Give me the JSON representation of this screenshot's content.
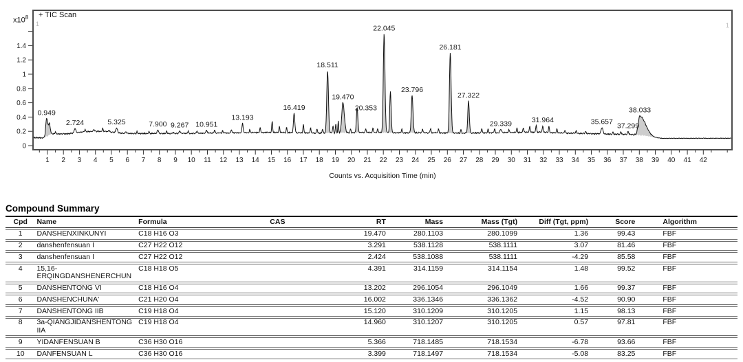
{
  "chromatogram": {
    "signal_label": "+ TIC Scan",
    "y_exponent_base": "x10",
    "y_exponent_power": "8",
    "corner_marker": "1",
    "x_axis_title": "Counts vs. Acquisition Time (min)"
  },
  "chart_data": {
    "type": "line",
    "title": "+ TIC Scan",
    "xlabel": "Counts vs. Acquisition Time (min)",
    "ylabel": "x10^8",
    "xlim": [
      0.1,
      43.75
    ],
    "ylim": [
      0,
      1.9
    ],
    "grid": false,
    "x_ticks": [
      1,
      2,
      3,
      4,
      5,
      6,
      7,
      8,
      9,
      10,
      11,
      12,
      13,
      14,
      15,
      16,
      17,
      18,
      19,
      20,
      21,
      22,
      23,
      24,
      25,
      26,
      27,
      28,
      29,
      30,
      31,
      32,
      33,
      34,
      35,
      36,
      37,
      38,
      39,
      40,
      41,
      42
    ],
    "y_tick_values": [
      0,
      0.2,
      0.4,
      0.6,
      0.8,
      1.0,
      1.2,
      1.4,
      1.6
    ],
    "y_tick_labels": [
      "0",
      "0.2",
      "0.4",
      "0.6",
      "0.8",
      "1",
      "1.2",
      "1.4",
      ""
    ],
    "baseline": [
      [
        0.1,
        0.11
      ],
      [
        0.8,
        0.11
      ],
      [
        1.25,
        0.165
      ],
      [
        2.2,
        0.165
      ],
      [
        3.0,
        0.185
      ],
      [
        3.8,
        0.2
      ],
      [
        4.6,
        0.2
      ],
      [
        5.1,
        0.185
      ],
      [
        5.8,
        0.17
      ],
      [
        7.0,
        0.17
      ],
      [
        9.0,
        0.17
      ],
      [
        11.0,
        0.175
      ],
      [
        13.0,
        0.18
      ],
      [
        15.0,
        0.185
      ],
      [
        16.5,
        0.18
      ],
      [
        18.0,
        0.175
      ],
      [
        19.7,
        0.18
      ],
      [
        21.0,
        0.185
      ],
      [
        23.0,
        0.18
      ],
      [
        25.0,
        0.18
      ],
      [
        27.0,
        0.175
      ],
      [
        29.0,
        0.18
      ],
      [
        30.5,
        0.185
      ],
      [
        31.8,
        0.19
      ],
      [
        32.6,
        0.18
      ],
      [
        33.5,
        0.175
      ],
      [
        34.5,
        0.17
      ],
      [
        35.5,
        0.165
      ],
      [
        36.5,
        0.16
      ],
      [
        37.5,
        0.155
      ],
      [
        38.4,
        0.14
      ],
      [
        38.9,
        0.115
      ],
      [
        39.4,
        0.102
      ],
      [
        43.75,
        0.103
      ]
    ],
    "peaks": [
      {
        "rt": 0.949,
        "h": 0.25,
        "sl": 0.055,
        "sr": 0.09,
        "fill": true,
        "label": "0.949"
      },
      {
        "rt": 1.13,
        "h": 0.13,
        "sl": 0.04,
        "sr": 0.05,
        "fill": true
      },
      {
        "rt": 2.724,
        "h": 0.06,
        "sl": 0.05,
        "sr": 0.05,
        "label": "2.724"
      },
      {
        "rt": 5.325,
        "h": 0.07,
        "sl": 0.05,
        "sr": 0.05,
        "label": "5.325"
      },
      {
        "rt": 7.9,
        "h": 0.05,
        "sl": 0.04,
        "sr": 0.04,
        "label": "7.900"
      },
      {
        "rt": 9.267,
        "h": 0.035,
        "sl": 0.04,
        "sr": 0.04,
        "label": "9.267"
      },
      {
        "rt": 10.951,
        "h": 0.04,
        "sl": 0.04,
        "sr": 0.04,
        "label": "10.951"
      },
      {
        "rt": 13.193,
        "h": 0.13,
        "sl": 0.035,
        "sr": 0.04,
        "label": "13.193"
      },
      {
        "rt": 16.419,
        "h": 0.27,
        "sl": 0.04,
        "sr": 0.045,
        "label": "16.419"
      },
      {
        "rt": 18.511,
        "h": 0.87,
        "sl": 0.05,
        "sr": 0.055,
        "fill": true,
        "label": "18.511"
      },
      {
        "rt": 19.18,
        "h": 0.16,
        "sl": 0.025,
        "sr": 0.025,
        "fill": true
      },
      {
        "rt": 19.47,
        "h": 0.42,
        "sl": 0.07,
        "sr": 0.09,
        "fill": true,
        "label": "19.470"
      },
      {
        "rt": 20.353,
        "h": 0.35,
        "sl": 0.04,
        "sr": 0.05,
        "fill": true,
        "label": "20.353",
        "dx": 13,
        "dy": 9
      },
      {
        "rt": 22.045,
        "h": 1.38,
        "sl": 0.05,
        "sr": 0.055,
        "fill": true,
        "label": "22.045"
      },
      {
        "rt": 22.44,
        "h": 0.58,
        "sl": 0.04,
        "sr": 0.045,
        "fill": true
      },
      {
        "rt": 23.796,
        "h": 0.52,
        "sl": 0.05,
        "sr": 0.055,
        "fill": true,
        "label": "23.796"
      },
      {
        "rt": 26.181,
        "h": 1.12,
        "sl": 0.05,
        "sr": 0.055,
        "fill": true,
        "label": "26.181"
      },
      {
        "rt": 27.322,
        "h": 0.45,
        "sl": 0.045,
        "sr": 0.05,
        "fill": true,
        "label": "27.322"
      },
      {
        "rt": 29.339,
        "h": 0.045,
        "sl": 0.05,
        "sr": 0.05,
        "label": "29.339"
      },
      {
        "rt": 31.964,
        "h": 0.09,
        "sl": 0.03,
        "sr": 0.03,
        "label": "31.964"
      },
      {
        "rt": 35.657,
        "h": 0.09,
        "sl": 0.05,
        "sr": 0.06,
        "label": "35.657"
      },
      {
        "rt": 37.299,
        "h": 0.04,
        "sl": 0.04,
        "sr": 0.04,
        "label": "37.299"
      },
      {
        "rt": 38.033,
        "h": 0.27,
        "sl": 0.1,
        "sr": 0.35,
        "fill": true,
        "label": "38.033"
      }
    ],
    "minor_peaks": [
      [
        1.5,
        0.03
      ],
      [
        3.35,
        0.035
      ],
      [
        3.9,
        0.03
      ],
      [
        4.45,
        0.04
      ],
      [
        4.85,
        0.03
      ],
      [
        5.9,
        0.03
      ],
      [
        6.6,
        0.025
      ],
      [
        7.35,
        0.03
      ],
      [
        8.45,
        0.03
      ],
      [
        8.85,
        0.025
      ],
      [
        9.8,
        0.03
      ],
      [
        10.35,
        0.03
      ],
      [
        11.45,
        0.045
      ],
      [
        11.95,
        0.035
      ],
      [
        12.5,
        0.05
      ],
      [
        13.65,
        0.04
      ],
      [
        14.3,
        0.065
      ],
      [
        15.05,
        0.15
      ],
      [
        15.5,
        0.08
      ],
      [
        15.95,
        0.07
      ],
      [
        17.0,
        0.12
      ],
      [
        17.45,
        0.07
      ],
      [
        17.85,
        0.06
      ],
      [
        18.2,
        0.06
      ],
      [
        18.85,
        0.1
      ],
      [
        19.03,
        0.12
      ],
      [
        19.95,
        0.05
      ],
      [
        20.9,
        0.05
      ],
      [
        21.35,
        0.06
      ],
      [
        21.65,
        0.05
      ],
      [
        23.15,
        0.05
      ],
      [
        24.45,
        0.05
      ],
      [
        24.95,
        0.06
      ],
      [
        25.45,
        0.05
      ],
      [
        26.85,
        0.05
      ],
      [
        28.15,
        0.06
      ],
      [
        28.55,
        0.05
      ],
      [
        28.95,
        0.06
      ],
      [
        29.85,
        0.045
      ],
      [
        30.35,
        0.06
      ],
      [
        30.75,
        0.07
      ],
      [
        31.15,
        0.08
      ],
      [
        31.55,
        0.095
      ],
      [
        32.35,
        0.085
      ],
      [
        32.85,
        0.055
      ],
      [
        33.35,
        0.045
      ],
      [
        34.05,
        0.035
      ],
      [
        34.65,
        0.03
      ],
      [
        36.35,
        0.03
      ],
      [
        36.85,
        0.035
      ]
    ],
    "colors": {
      "trace": "#141414",
      "fill": "#c8c8c8",
      "axis": "#4d4d4d",
      "tick_text": "#1c1c1c",
      "label_text": "#1a1a1a"
    }
  },
  "table": {
    "title": "Compound Summary",
    "columns": [
      {
        "key": "cpd",
        "label": "Cpd",
        "align": "center",
        "width": "4%"
      },
      {
        "key": "name",
        "label": "Name",
        "align": "left",
        "width": "14.5%"
      },
      {
        "key": "formula",
        "label": "Formula",
        "align": "left",
        "width": "9.5%"
      },
      {
        "key": "cas",
        "label": "CAS",
        "align": "center",
        "width": "21%"
      },
      {
        "key": "rt",
        "label": "RT",
        "align": "right",
        "width": "5%"
      },
      {
        "key": "mass",
        "label": "Mass",
        "align": "right",
        "width": "8%"
      },
      {
        "key": "mass_tgt",
        "label": "Mass (Tgt)",
        "align": "right",
        "width": "10.5%"
      },
      {
        "key": "diff",
        "label": "Diff (Tgt, ppm)",
        "align": "right",
        "width": "10%"
      },
      {
        "key": "score",
        "label": "Score",
        "align": "right",
        "width": "6.5%"
      },
      {
        "key": "algorithm",
        "label": "Algorithm",
        "align": "left-indent",
        "width": "11%"
      }
    ],
    "rows": [
      {
        "cpd": "1",
        "name": "DANSHENXINKUNYI",
        "formula": "C18 H16 O3",
        "cas": "",
        "rt": "19.470",
        "mass": "280.1103",
        "mass_tgt": "280.1099",
        "diff": "1.36",
        "score": "99.43",
        "algorithm": "FBF"
      },
      {
        "cpd": "2",
        "name": "danshenfensuan I",
        "formula": "C27 H22 O12",
        "cas": "",
        "rt": "3.291",
        "mass": "538.1128",
        "mass_tgt": "538.1111",
        "diff": "3.07",
        "score": "81.46",
        "algorithm": "FBF"
      },
      {
        "cpd": "3",
        "name": "danshenfensuan I",
        "formula": "C27 H22 O12",
        "cas": "",
        "rt": "2.424",
        "mass": "538.1088",
        "mass_tgt": "538.1111",
        "diff": "-4.29",
        "score": "85.58",
        "algorithm": "FBF"
      },
      {
        "cpd": "4",
        "name": "15,16-ERQINGDANSHENERCHUN",
        "formula": "C18 H18 O5",
        "cas": "",
        "rt": "4.391",
        "mass": "314.1159",
        "mass_tgt": "314.1154",
        "diff": "1.48",
        "score": "99.52",
        "algorithm": "FBF"
      },
      {
        "cpd": "5",
        "name": "DANSHENTONG VI",
        "formula": "C18 H16 O4",
        "cas": "",
        "rt": "13.202",
        "mass": "296.1054",
        "mass_tgt": "296.1049",
        "diff": "1.66",
        "score": "99.37",
        "algorithm": "FBF"
      },
      {
        "cpd": "6",
        "name": "DANSHENCHUNA'",
        "formula": "C21 H20 O4",
        "cas": "",
        "rt": "16.002",
        "mass": "336.1346",
        "mass_tgt": "336.1362",
        "diff": "-4.52",
        "score": "90.90",
        "algorithm": "FBF"
      },
      {
        "cpd": "7",
        "name": "DANSHENTONG IIB",
        "formula": "C19 H18 O4",
        "cas": "",
        "rt": "15.120",
        "mass": "310.1209",
        "mass_tgt": "310.1205",
        "diff": "1.15",
        "score": "98.13",
        "algorithm": "FBF"
      },
      {
        "cpd": "8",
        "name": "3a-QIANGJIDANSHENTONG IIA",
        "formula": "C19 H18 O4",
        "cas": "",
        "rt": "14.960",
        "mass": "310.1207",
        "mass_tgt": "310.1205",
        "diff": "0.57",
        "score": "97.81",
        "algorithm": "FBF"
      },
      {
        "cpd": "9",
        "name": "YIDANFENSUAN B",
        "formula": "C36 H30 O16",
        "cas": "",
        "rt": "5.366",
        "mass": "718.1485",
        "mass_tgt": "718.1534",
        "diff": "-6.78",
        "score": "93.66",
        "algorithm": "FBF"
      },
      {
        "cpd": "10",
        "name": "DANFENSUAN L",
        "formula": "C36 H30 O16",
        "cas": "",
        "rt": "3.399",
        "mass": "718.1497",
        "mass_tgt": "718.1534",
        "diff": "-5.08",
        "score": "83.25",
        "algorithm": "FBF"
      }
    ]
  }
}
